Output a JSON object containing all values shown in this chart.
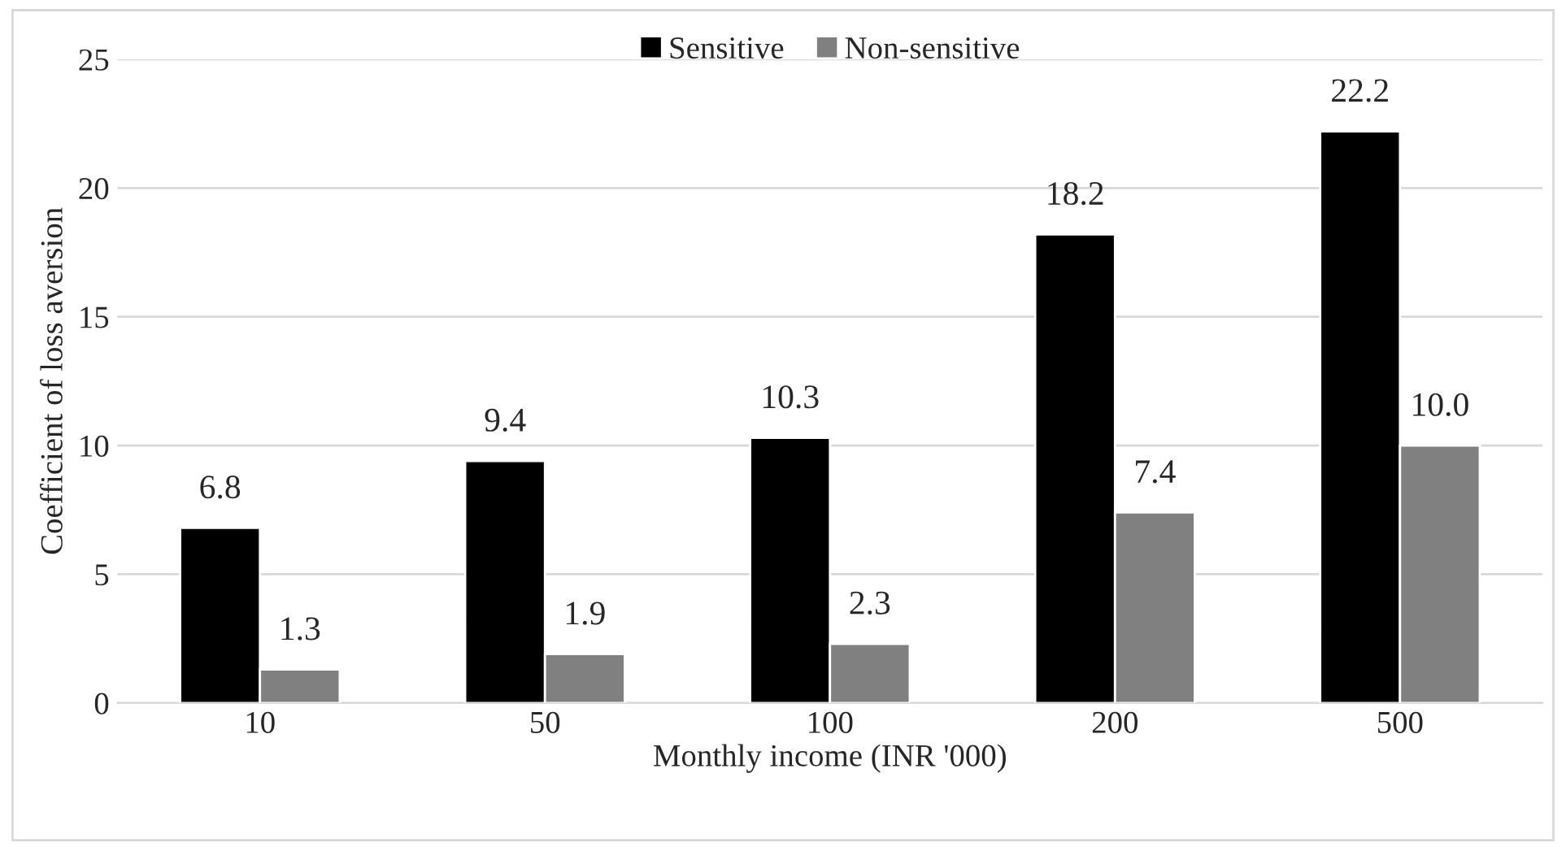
{
  "chart_data": {
    "type": "bar",
    "xlabel": "Monthly income (INR '000)",
    "ylabel": "Coefficient of loss aversion",
    "categories": [
      "10",
      "50",
      "100",
      "200",
      "500"
    ],
    "series": [
      {
        "name": "Sensitive",
        "color": "#000000",
        "values": [
          6.8,
          9.4,
          10.3,
          18.2,
          22.2
        ],
        "value_labels": [
          "6.8",
          "9.4",
          "10.3",
          "18.2",
          "22.2"
        ]
      },
      {
        "name": "Non-sensitive",
        "color": "#808080",
        "values": [
          1.3,
          1.9,
          2.3,
          7.4,
          10.0
        ],
        "value_labels": [
          "1.3",
          "1.9",
          "2.3",
          "7.4",
          "10.0"
        ]
      }
    ],
    "ylim": [
      0,
      25
    ],
    "yticks": [
      0,
      5,
      10,
      15,
      20,
      25
    ],
    "grid": "y",
    "legend": "top"
  }
}
